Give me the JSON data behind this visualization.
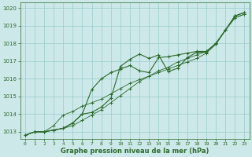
{
  "bg_color": "#cce8e8",
  "plot_bg_color": "#cce8e8",
  "grid_color": "#99cccc",
  "line_color": "#2d6a2d",
  "xlabel": "Graphe pression niveau de la mer (hPa)",
  "ylabel_ticks": [
    1013,
    1014,
    1015,
    1016,
    1017,
    1018,
    1019,
    1020
  ],
  "xlim": [
    -0.5,
    23.5
  ],
  "ylim": [
    1012.6,
    1020.3
  ],
  "xticks": [
    0,
    1,
    2,
    3,
    4,
    5,
    6,
    7,
    8,
    9,
    10,
    11,
    12,
    13,
    14,
    15,
    16,
    17,
    18,
    19,
    20,
    21,
    22,
    23
  ],
  "series": [
    [
      1012.8,
      1013.0,
      1013.0,
      1013.1,
      1013.2,
      1013.5,
      1014.0,
      1014.1,
      1014.4,
      1014.9,
      1016.7,
      1017.1,
      1017.4,
      1017.15,
      1017.35,
      1016.4,
      1016.6,
      1017.2,
      1017.5,
      1017.5,
      1018.0,
      1018.75,
      1019.55,
      1019.75
    ],
    [
      1012.8,
      1013.0,
      1013.0,
      1013.1,
      1013.2,
      1013.5,
      1014.0,
      1015.4,
      1016.0,
      1016.35,
      1016.55,
      1016.75,
      1016.45,
      1016.35,
      1017.2,
      1017.25,
      1017.35,
      1017.45,
      1017.55,
      1017.55,
      1018.0,
      1018.75,
      1019.55,
      1019.75
    ],
    [
      1012.8,
      1013.0,
      1013.0,
      1013.35,
      1013.95,
      1014.15,
      1014.45,
      1014.65,
      1014.85,
      1015.15,
      1015.45,
      1015.75,
      1015.95,
      1016.15,
      1016.35,
      1016.55,
      1016.75,
      1016.95,
      1017.15,
      1017.45,
      1017.95,
      1018.75,
      1019.45,
      1019.65
    ],
    [
      1012.8,
      1013.0,
      1013.0,
      1013.1,
      1013.2,
      1013.35,
      1013.65,
      1013.95,
      1014.25,
      1014.65,
      1015.05,
      1015.45,
      1015.85,
      1016.15,
      1016.45,
      1016.65,
      1016.95,
      1017.15,
      1017.35,
      1017.55,
      1017.95,
      1018.75,
      1019.45,
      1019.65
    ]
  ]
}
